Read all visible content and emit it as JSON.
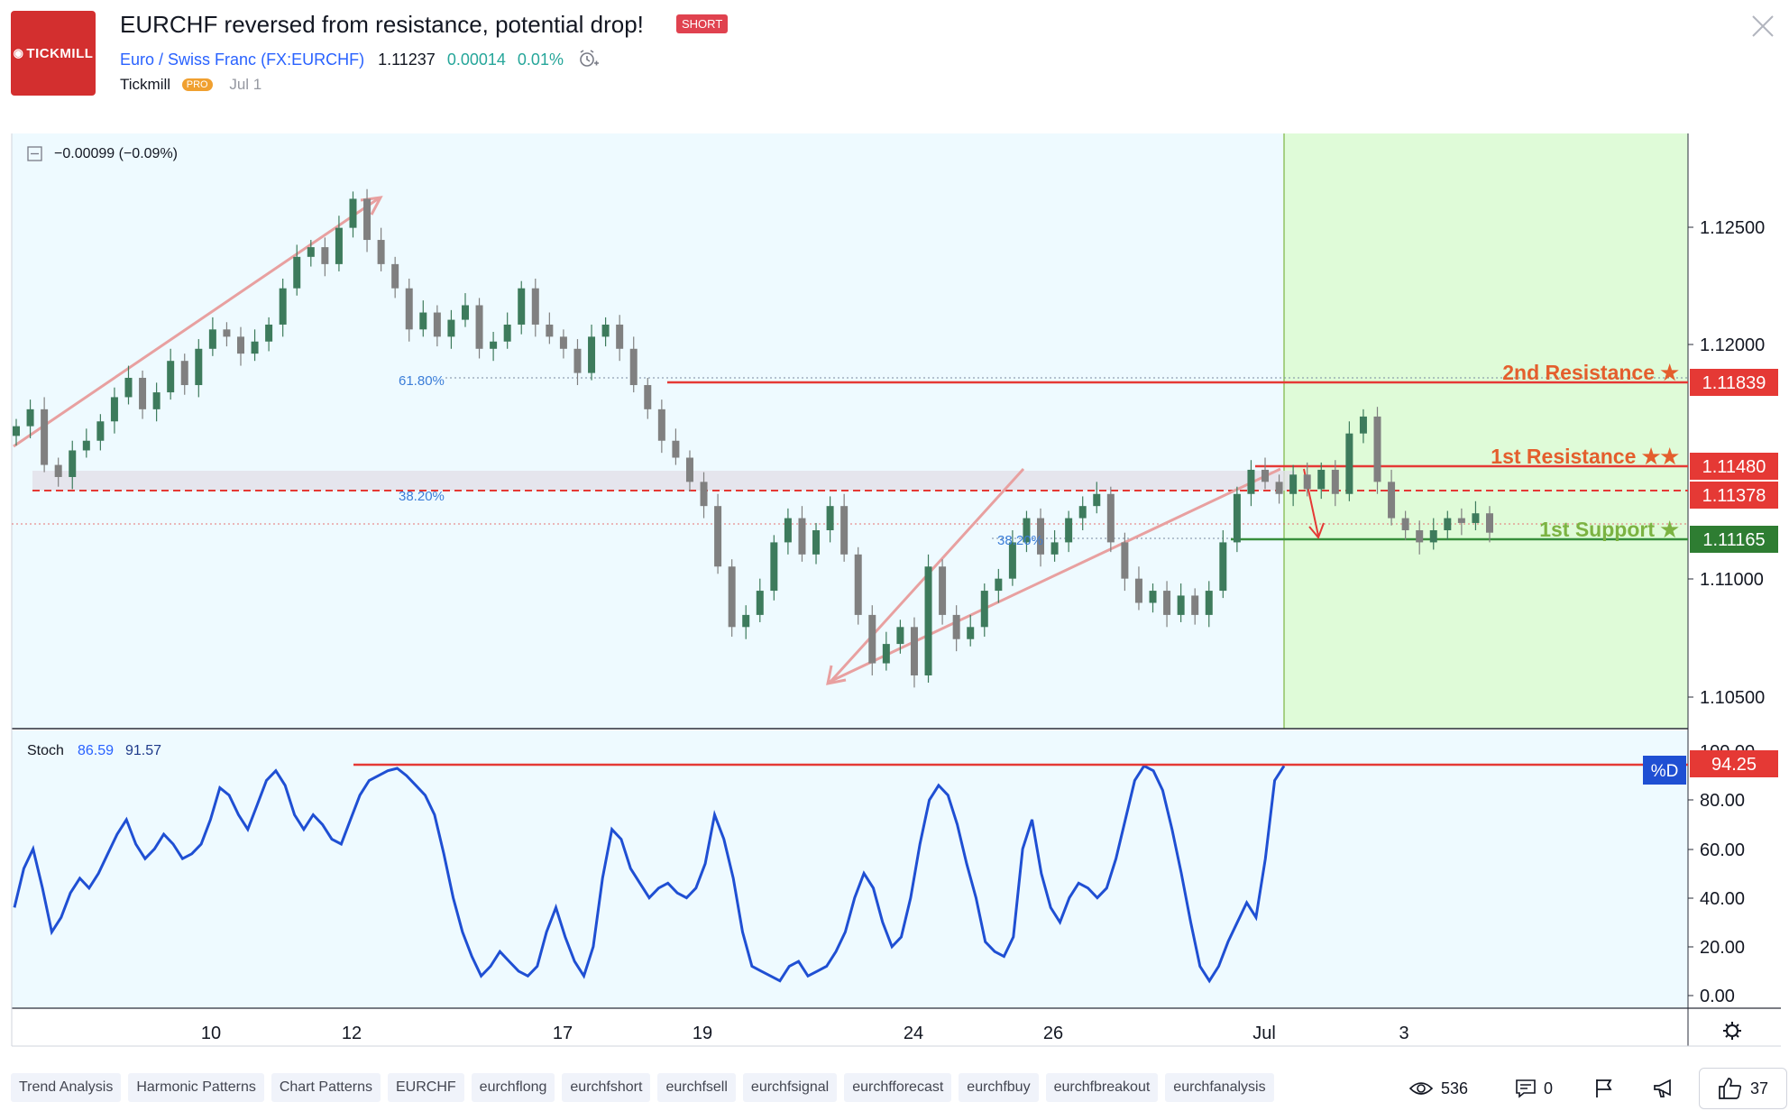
{
  "header": {
    "logo_text": "TICKMILL",
    "title": "EURCHF reversed from resistance, potential drop!",
    "badge": "SHORT",
    "symbol_name": "Euro / Swiss Franc",
    "symbol_code_open": "(",
    "symbol_code": "FX:EURCHF",
    "symbol_code_close": ")",
    "last_price": "1.11237",
    "change_abs": "0.00014",
    "change_pct": "0.01%",
    "author": "Tickmill",
    "author_badge": "PRO",
    "date": "Jul 1"
  },
  "chart_data": [
    {
      "type": "line",
      "panel": "price-candlestick",
      "legend_value": "−0.00099 (−0.09%)",
      "y_ticks": [
        "1.12500",
        "1.12000",
        "1.11000",
        "1.10500"
      ],
      "ylim": [
        1.1043,
        1.1289
      ],
      "x_ticks": [
        "10",
        "12",
        "17",
        "19",
        "24",
        "26",
        "Jul",
        "3"
      ],
      "series": [
        {
          "values": [
            1.1168,
            1.1175,
            1.1152,
            1.1147,
            1.1158,
            1.1162,
            1.117,
            1.118,
            1.1188,
            1.1175,
            1.1182,
            1.1195,
            1.1185,
            1.12,
            1.1208,
            1.1205,
            1.1198,
            1.1203,
            1.121,
            1.1225,
            1.1238,
            1.1242,
            1.1235,
            1.125,
            1.1262,
            1.1245,
            1.1235,
            1.1225,
            1.1208,
            1.1215,
            1.1205,
            1.1212,
            1.1218,
            1.12,
            1.1203,
            1.121,
            1.1225,
            1.121,
            1.1205,
            1.12,
            1.119,
            1.1205,
            1.121,
            1.12,
            1.1185,
            1.1175,
            1.1162,
            1.1155,
            1.1145,
            1.1135,
            1.111,
            1.1085,
            1.109,
            1.11,
            1.112,
            1.113,
            1.1115,
            1.1125,
            1.1135,
            1.1115,
            1.109,
            1.107,
            1.1078,
            1.1085,
            1.1065,
            1.111,
            1.109,
            1.108,
            1.1085,
            1.11,
            1.1105,
            1.112,
            1.113,
            1.1115,
            1.112,
            1.113,
            1.1135,
            1.114,
            1.112,
            1.1105,
            1.1095,
            1.11,
            1.109,
            1.1098,
            1.109,
            1.11,
            1.112,
            1.114,
            1.115,
            1.1145,
            1.114,
            1.1148,
            1.1142,
            1.115,
            1.114,
            1.1165,
            1.1172,
            1.1145,
            1.113,
            1.1125,
            1.112,
            1.1125,
            1.113,
            1.1128,
            1.1132,
            1.1124
          ]
        }
      ],
      "annotations": {
        "fib_618": "61.80%",
        "fib_382_top": "38.20%",
        "fib_382_low": "38.20%",
        "resistance_2_label": "2nd Resistance ★",
        "resistance_2_value": "1.11839",
        "resistance_1_label": "1st Resistance ★★",
        "resistance_1_value": "1.11480",
        "pivot_value": "1.11378",
        "support_1_label": "1st Support ★",
        "support_1_value": "1.11165"
      },
      "levels": {
        "resistance_2": 1.11839,
        "resistance_1": 1.1148,
        "pivot": 1.11378,
        "support_1": 1.11165,
        "last": 1.11237
      },
      "colors": {
        "background": "#eefaff",
        "projection_zone": "#dffbd8",
        "resistance": "#e53935",
        "support": "#388e3c",
        "resistance_label": "#e45e2d",
        "support_label": "#7cb342",
        "candle_up": "#3d7b5c",
        "candle_down": "#808080",
        "trend_arrow": "#e8a0a0"
      }
    },
    {
      "type": "line",
      "panel": "stochastic",
      "title": "Stoch",
      "k_value": "86.59",
      "d_value": "91.57",
      "badge": "%D",
      "level_value": "94.25",
      "y_ticks": [
        "100.00",
        "80.00",
        "60.00",
        "40.00",
        "20.00",
        "0.00"
      ],
      "ylim": [
        0,
        100
      ],
      "series": [
        {
          "values": [
            36,
            52,
            60,
            44,
            26,
            32,
            42,
            48,
            44,
            50,
            58,
            66,
            72,
            62,
            56,
            60,
            66,
            62,
            56,
            58,
            62,
            72,
            85,
            82,
            74,
            68,
            78,
            88,
            92,
            86,
            74,
            68,
            74,
            70,
            64,
            62,
            72,
            82,
            88,
            90,
            92,
            93,
            90,
            86,
            82,
            74,
            58,
            40,
            26,
            16,
            8,
            12,
            18,
            14,
            10,
            8,
            12,
            26,
            36,
            24,
            14,
            8,
            20,
            48,
            68,
            64,
            52,
            46,
            40,
            44,
            46,
            42,
            40,
            44,
            54,
            74,
            64,
            48,
            26,
            12,
            10,
            8,
            6,
            12,
            14,
            8,
            10,
            12,
            18,
            26,
            40,
            50,
            44,
            30,
            20,
            24,
            40,
            62,
            80,
            86,
            82,
            70,
            54,
            40,
            22,
            18,
            16,
            24,
            60,
            72,
            50,
            36,
            30,
            40,
            46,
            44,
            40,
            44,
            56,
            72,
            88,
            94,
            92,
            84,
            68,
            50,
            30,
            12,
            6,
            12,
            22,
            30,
            38,
            32,
            56,
            88,
            94
          ]
        }
      ]
    }
  ],
  "tags": [
    "Trend Analysis",
    "Harmonic Patterns",
    "Chart Patterns",
    "EURCHF",
    "eurchflong",
    "eurchfshort",
    "eurchfsell",
    "eurchfsignal",
    "eurchfforecast",
    "eurchfbuy",
    "eurchfbreakout",
    "eurchfanalysis"
  ],
  "stats": {
    "views": "536",
    "comments": "0",
    "likes": "37"
  }
}
